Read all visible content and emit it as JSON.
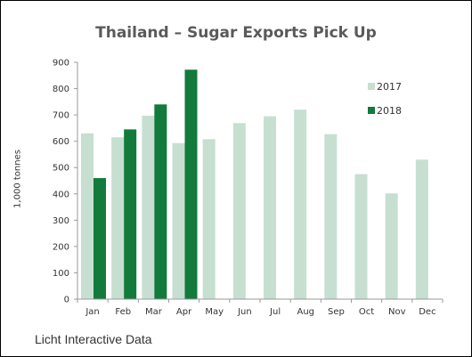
{
  "chart_data": {
    "type": "bar",
    "title": "Thailand – Sugar Exports Pick Up",
    "xlabel": "",
    "ylabel": "1,000 tonnes",
    "categories": [
      "Jan",
      "Feb",
      "Mar",
      "Apr",
      "May",
      "Jun",
      "Jul",
      "Aug",
      "Sep",
      "Oct",
      "Nov",
      "Dec"
    ],
    "series": [
      {
        "name": "2017",
        "color": "#c6dfd1",
        "values": [
          630,
          615,
          697,
          593,
          608,
          669,
          695,
          720,
          627,
          475,
          402,
          530
        ]
      },
      {
        "name": "2018",
        "color": "#127a3b",
        "values": [
          460,
          645,
          740,
          872,
          null,
          null,
          null,
          null,
          null,
          null,
          null,
          null
        ]
      }
    ],
    "ylim": [
      0,
      900
    ],
    "yticks": [
      0,
      100,
      200,
      300,
      400,
      500,
      600,
      700,
      800,
      900
    ],
    "grid": false,
    "legend_position": "top-right",
    "axis_color": "#9a9a9a"
  },
  "source_note": "Licht Interactive Data"
}
